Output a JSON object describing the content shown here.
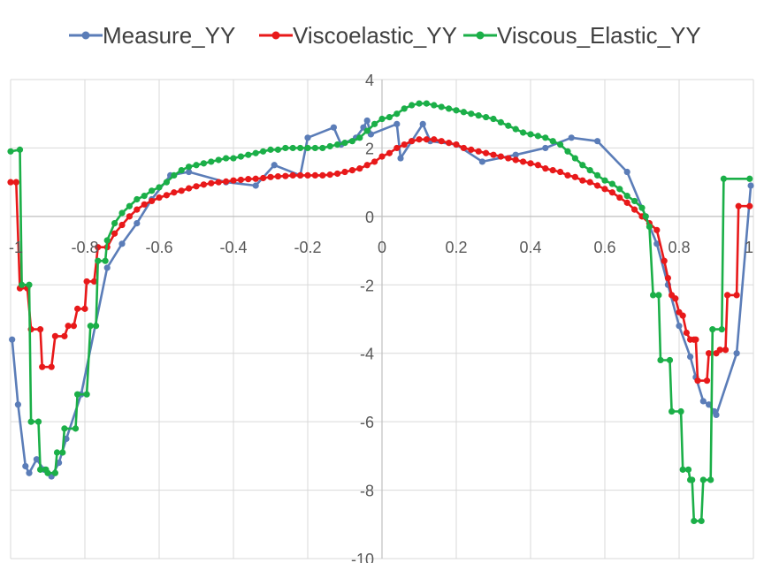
{
  "chart_data": {
    "type": "line",
    "title": "",
    "xlabel": "",
    "ylabel": "",
    "xlim": [
      -1,
      1
    ],
    "ylim": [
      -10,
      4
    ],
    "x_ticks": [
      -1,
      -0.8,
      -0.6,
      -0.4,
      -0.2,
      0,
      0.2,
      0.4,
      0.6,
      0.8,
      1
    ],
    "x_tick_labels": [
      "-1",
      "-0.8",
      "-0.6",
      "-0.4",
      "-0.2",
      "0",
      "0.2",
      "0.4",
      "0.6",
      "0.8",
      "1"
    ],
    "y_ticks": [
      4,
      2,
      0,
      -2,
      -4,
      -6,
      -8,
      -10
    ],
    "y_tick_labels": [
      "4",
      "2",
      "0",
      "-2",
      "-4",
      "-6",
      "-8",
      "-10"
    ],
    "grid": true,
    "legend_position": "top",
    "series": [
      {
        "name": "Measure_YY",
        "color": "#5B7DB8",
        "points": [
          [
            -0.996,
            -3.6
          ],
          [
            -0.98,
            -5.5
          ],
          [
            -0.96,
            -7.3
          ],
          [
            -0.95,
            -7.5
          ],
          [
            -0.93,
            -7.1
          ],
          [
            -0.91,
            -7.4
          ],
          [
            -0.89,
            -7.6
          ],
          [
            -0.87,
            -7.2
          ],
          [
            -0.85,
            -6.5
          ],
          [
            -0.81,
            -5.2
          ],
          [
            -0.74,
            -1.5
          ],
          [
            -0.7,
            -0.8
          ],
          [
            -0.66,
            -0.2
          ],
          [
            -0.62,
            0.5
          ],
          [
            -0.57,
            1.2
          ],
          [
            -0.52,
            1.3
          ],
          [
            -0.42,
            1.0
          ],
          [
            -0.34,
            0.9
          ],
          [
            -0.29,
            1.5
          ],
          [
            -0.22,
            1.2
          ],
          [
            -0.2,
            2.3
          ],
          [
            -0.13,
            2.6
          ],
          [
            -0.11,
            2.1
          ],
          [
            -0.07,
            2.3
          ],
          [
            -0.05,
            2.6
          ],
          [
            -0.04,
            2.8
          ],
          [
            -0.03,
            2.4
          ],
          [
            0.04,
            2.7
          ],
          [
            0.05,
            1.7
          ],
          [
            0.08,
            2.2
          ],
          [
            0.11,
            2.7
          ],
          [
            0.13,
            2.2
          ],
          [
            0.2,
            2.1
          ],
          [
            0.27,
            1.6
          ],
          [
            0.36,
            1.8
          ],
          [
            0.44,
            2.0
          ],
          [
            0.51,
            2.3
          ],
          [
            0.58,
            2.2
          ],
          [
            0.66,
            1.3
          ],
          [
            0.71,
            0.0
          ],
          [
            0.74,
            -0.8
          ],
          [
            0.77,
            -2.0
          ],
          [
            0.8,
            -3.2
          ],
          [
            0.83,
            -4.1
          ],
          [
            0.845,
            -4.7
          ],
          [
            0.865,
            -5.4
          ],
          [
            0.88,
            -5.5
          ],
          [
            0.895,
            -5.7
          ],
          [
            0.9,
            -5.8
          ],
          [
            0.955,
            -4.0
          ],
          [
            0.993,
            0.9
          ]
        ]
      },
      {
        "name": "Viscoelastic_YY",
        "color": "#E8191A",
        "points": [
          [
            -1.0,
            1.0
          ],
          [
            -0.985,
            1.0
          ],
          [
            -0.975,
            -2.1
          ],
          [
            -0.955,
            -2.1
          ],
          [
            -0.945,
            -3.3
          ],
          [
            -0.92,
            -3.3
          ],
          [
            -0.915,
            -4.4
          ],
          [
            -0.89,
            -4.4
          ],
          [
            -0.88,
            -3.5
          ],
          [
            -0.855,
            -3.5
          ],
          [
            -0.845,
            -3.2
          ],
          [
            -0.83,
            -3.2
          ],
          [
            -0.82,
            -2.7
          ],
          [
            -0.8,
            -2.7
          ],
          [
            -0.795,
            -1.9
          ],
          [
            -0.775,
            -1.9
          ],
          [
            -0.765,
            -0.9
          ],
          [
            -0.74,
            -0.9
          ],
          [
            -0.72,
            -0.5
          ],
          [
            -0.7,
            -0.25
          ],
          [
            -0.68,
            0.0
          ],
          [
            -0.66,
            0.2
          ],
          [
            -0.64,
            0.35
          ],
          [
            -0.62,
            0.45
          ],
          [
            -0.6,
            0.55
          ],
          [
            -0.58,
            0.62
          ],
          [
            -0.56,
            0.7
          ],
          [
            -0.54,
            0.75
          ],
          [
            -0.52,
            0.82
          ],
          [
            -0.5,
            0.88
          ],
          [
            -0.48,
            0.93
          ],
          [
            -0.46,
            0.97
          ],
          [
            -0.44,
            1.0
          ],
          [
            -0.42,
            1.02
          ],
          [
            -0.4,
            1.05
          ],
          [
            -0.38,
            1.07
          ],
          [
            -0.36,
            1.09
          ],
          [
            -0.34,
            1.1
          ],
          [
            -0.32,
            1.12
          ],
          [
            -0.3,
            1.15
          ],
          [
            -0.28,
            1.17
          ],
          [
            -0.26,
            1.18
          ],
          [
            -0.24,
            1.2
          ],
          [
            -0.22,
            1.2
          ],
          [
            -0.2,
            1.2
          ],
          [
            -0.18,
            1.2
          ],
          [
            -0.16,
            1.2
          ],
          [
            -0.14,
            1.22
          ],
          [
            -0.12,
            1.25
          ],
          [
            -0.1,
            1.3
          ],
          [
            -0.08,
            1.35
          ],
          [
            -0.06,
            1.4
          ],
          [
            -0.04,
            1.5
          ],
          [
            -0.02,
            1.6
          ],
          [
            0.0,
            1.75
          ],
          [
            0.02,
            1.85
          ],
          [
            0.04,
            2.0
          ],
          [
            0.06,
            2.1
          ],
          [
            0.08,
            2.2
          ],
          [
            0.1,
            2.25
          ],
          [
            0.12,
            2.25
          ],
          [
            0.14,
            2.25
          ],
          [
            0.16,
            2.2
          ],
          [
            0.18,
            2.15
          ],
          [
            0.2,
            2.1
          ],
          [
            0.22,
            2.0
          ],
          [
            0.24,
            1.95
          ],
          [
            0.26,
            1.9
          ],
          [
            0.28,
            1.85
          ],
          [
            0.3,
            1.8
          ],
          [
            0.32,
            1.75
          ],
          [
            0.34,
            1.7
          ],
          [
            0.36,
            1.65
          ],
          [
            0.38,
            1.6
          ],
          [
            0.4,
            1.55
          ],
          [
            0.42,
            1.5
          ],
          [
            0.44,
            1.4
          ],
          [
            0.46,
            1.35
          ],
          [
            0.48,
            1.3
          ],
          [
            0.5,
            1.2
          ],
          [
            0.52,
            1.15
          ],
          [
            0.54,
            1.05
          ],
          [
            0.56,
            1.0
          ],
          [
            0.58,
            0.9
          ],
          [
            0.6,
            0.8
          ],
          [
            0.62,
            0.7
          ],
          [
            0.64,
            0.55
          ],
          [
            0.66,
            0.4
          ],
          [
            0.68,
            0.2
          ],
          [
            0.7,
            0.0
          ],
          [
            0.72,
            -0.2
          ],
          [
            0.74,
            -0.4
          ],
          [
            0.76,
            -1.3
          ],
          [
            0.77,
            -1.8
          ],
          [
            0.78,
            -2.3
          ],
          [
            0.79,
            -2.4
          ],
          [
            0.8,
            -2.8
          ],
          [
            0.81,
            -2.9
          ],
          [
            0.82,
            -3.4
          ],
          [
            0.83,
            -3.6
          ],
          [
            0.84,
            -3.6
          ],
          [
            0.845,
            -3.6
          ],
          [
            0.85,
            -4.8
          ],
          [
            0.875,
            -4.8
          ],
          [
            0.88,
            -4.0
          ],
          [
            0.9,
            -4.0
          ],
          [
            0.91,
            -3.9
          ],
          [
            0.925,
            -3.9
          ],
          [
            0.93,
            -2.3
          ],
          [
            0.955,
            -2.3
          ],
          [
            0.96,
            0.3
          ],
          [
            0.99,
            0.3
          ]
        ]
      },
      {
        "name": "Viscous_Elastic_YY",
        "color": "#1BAF48",
        "points": [
          [
            -1.0,
            1.9
          ],
          [
            -0.975,
            1.95
          ],
          [
            -0.97,
            -2.0
          ],
          [
            -0.95,
            -2.0
          ],
          [
            -0.945,
            -6.0
          ],
          [
            -0.925,
            -6.0
          ],
          [
            -0.92,
            -7.4
          ],
          [
            -0.905,
            -7.4
          ],
          [
            -0.9,
            -7.5
          ],
          [
            -0.88,
            -7.5
          ],
          [
            -0.875,
            -6.9
          ],
          [
            -0.86,
            -6.9
          ],
          [
            -0.855,
            -6.2
          ],
          [
            -0.825,
            -6.2
          ],
          [
            -0.82,
            -5.2
          ],
          [
            -0.795,
            -5.2
          ],
          [
            -0.785,
            -3.2
          ],
          [
            -0.77,
            -3.2
          ],
          [
            -0.765,
            -1.3
          ],
          [
            -0.745,
            -1.3
          ],
          [
            -0.74,
            -0.7
          ],
          [
            -0.72,
            -0.2
          ],
          [
            -0.7,
            0.1
          ],
          [
            -0.68,
            0.3
          ],
          [
            -0.66,
            0.5
          ],
          [
            -0.64,
            0.6
          ],
          [
            -0.62,
            0.75
          ],
          [
            -0.6,
            0.85
          ],
          [
            -0.58,
            1.0
          ],
          [
            -0.56,
            1.2
          ],
          [
            -0.54,
            1.35
          ],
          [
            -0.52,
            1.45
          ],
          [
            -0.5,
            1.5
          ],
          [
            -0.48,
            1.55
          ],
          [
            -0.46,
            1.6
          ],
          [
            -0.44,
            1.65
          ],
          [
            -0.42,
            1.7
          ],
          [
            -0.4,
            1.7
          ],
          [
            -0.38,
            1.75
          ],
          [
            -0.36,
            1.8
          ],
          [
            -0.34,
            1.85
          ],
          [
            -0.32,
            1.9
          ],
          [
            -0.3,
            1.95
          ],
          [
            -0.28,
            1.95
          ],
          [
            -0.26,
            2.0
          ],
          [
            -0.24,
            2.0
          ],
          [
            -0.22,
            2.0
          ],
          [
            -0.2,
            2.0
          ],
          [
            -0.18,
            2.0
          ],
          [
            -0.16,
            2.0
          ],
          [
            -0.14,
            2.05
          ],
          [
            -0.12,
            2.1
          ],
          [
            -0.1,
            2.15
          ],
          [
            -0.08,
            2.2
          ],
          [
            -0.06,
            2.3
          ],
          [
            -0.04,
            2.5
          ],
          [
            -0.02,
            2.7
          ],
          [
            0.0,
            2.85
          ],
          [
            0.02,
            2.9
          ],
          [
            0.04,
            3.0
          ],
          [
            0.06,
            3.15
          ],
          [
            0.08,
            3.25
          ],
          [
            0.1,
            3.3
          ],
          [
            0.12,
            3.3
          ],
          [
            0.14,
            3.25
          ],
          [
            0.16,
            3.2
          ],
          [
            0.18,
            3.15
          ],
          [
            0.2,
            3.1
          ],
          [
            0.22,
            3.05
          ],
          [
            0.24,
            3.0
          ],
          [
            0.26,
            2.95
          ],
          [
            0.28,
            2.9
          ],
          [
            0.3,
            2.85
          ],
          [
            0.32,
            2.75
          ],
          [
            0.34,
            2.65
          ],
          [
            0.36,
            2.55
          ],
          [
            0.38,
            2.45
          ],
          [
            0.4,
            2.4
          ],
          [
            0.42,
            2.35
          ],
          [
            0.44,
            2.3
          ],
          [
            0.46,
            2.2
          ],
          [
            0.48,
            2.1
          ],
          [
            0.5,
            1.9
          ],
          [
            0.52,
            1.7
          ],
          [
            0.54,
            1.5
          ],
          [
            0.56,
            1.35
          ],
          [
            0.58,
            1.2
          ],
          [
            0.6,
            1.05
          ],
          [
            0.62,
            0.95
          ],
          [
            0.64,
            0.8
          ],
          [
            0.66,
            0.6
          ],
          [
            0.68,
            0.45
          ],
          [
            0.7,
            0.25
          ],
          [
            0.71,
            0.0
          ],
          [
            0.72,
            -0.3
          ],
          [
            0.73,
            -2.3
          ],
          [
            0.745,
            -2.3
          ],
          [
            0.75,
            -4.2
          ],
          [
            0.775,
            -4.2
          ],
          [
            0.78,
            -5.7
          ],
          [
            0.805,
            -5.7
          ],
          [
            0.81,
            -7.4
          ],
          [
            0.825,
            -7.4
          ],
          [
            0.83,
            -7.7
          ],
          [
            0.835,
            -7.7
          ],
          [
            0.84,
            -8.9
          ],
          [
            0.86,
            -8.9
          ],
          [
            0.865,
            -7.7
          ],
          [
            0.885,
            -7.7
          ],
          [
            0.89,
            -3.3
          ],
          [
            0.915,
            -3.3
          ],
          [
            0.92,
            1.1
          ],
          [
            0.99,
            1.1
          ]
        ]
      }
    ]
  }
}
